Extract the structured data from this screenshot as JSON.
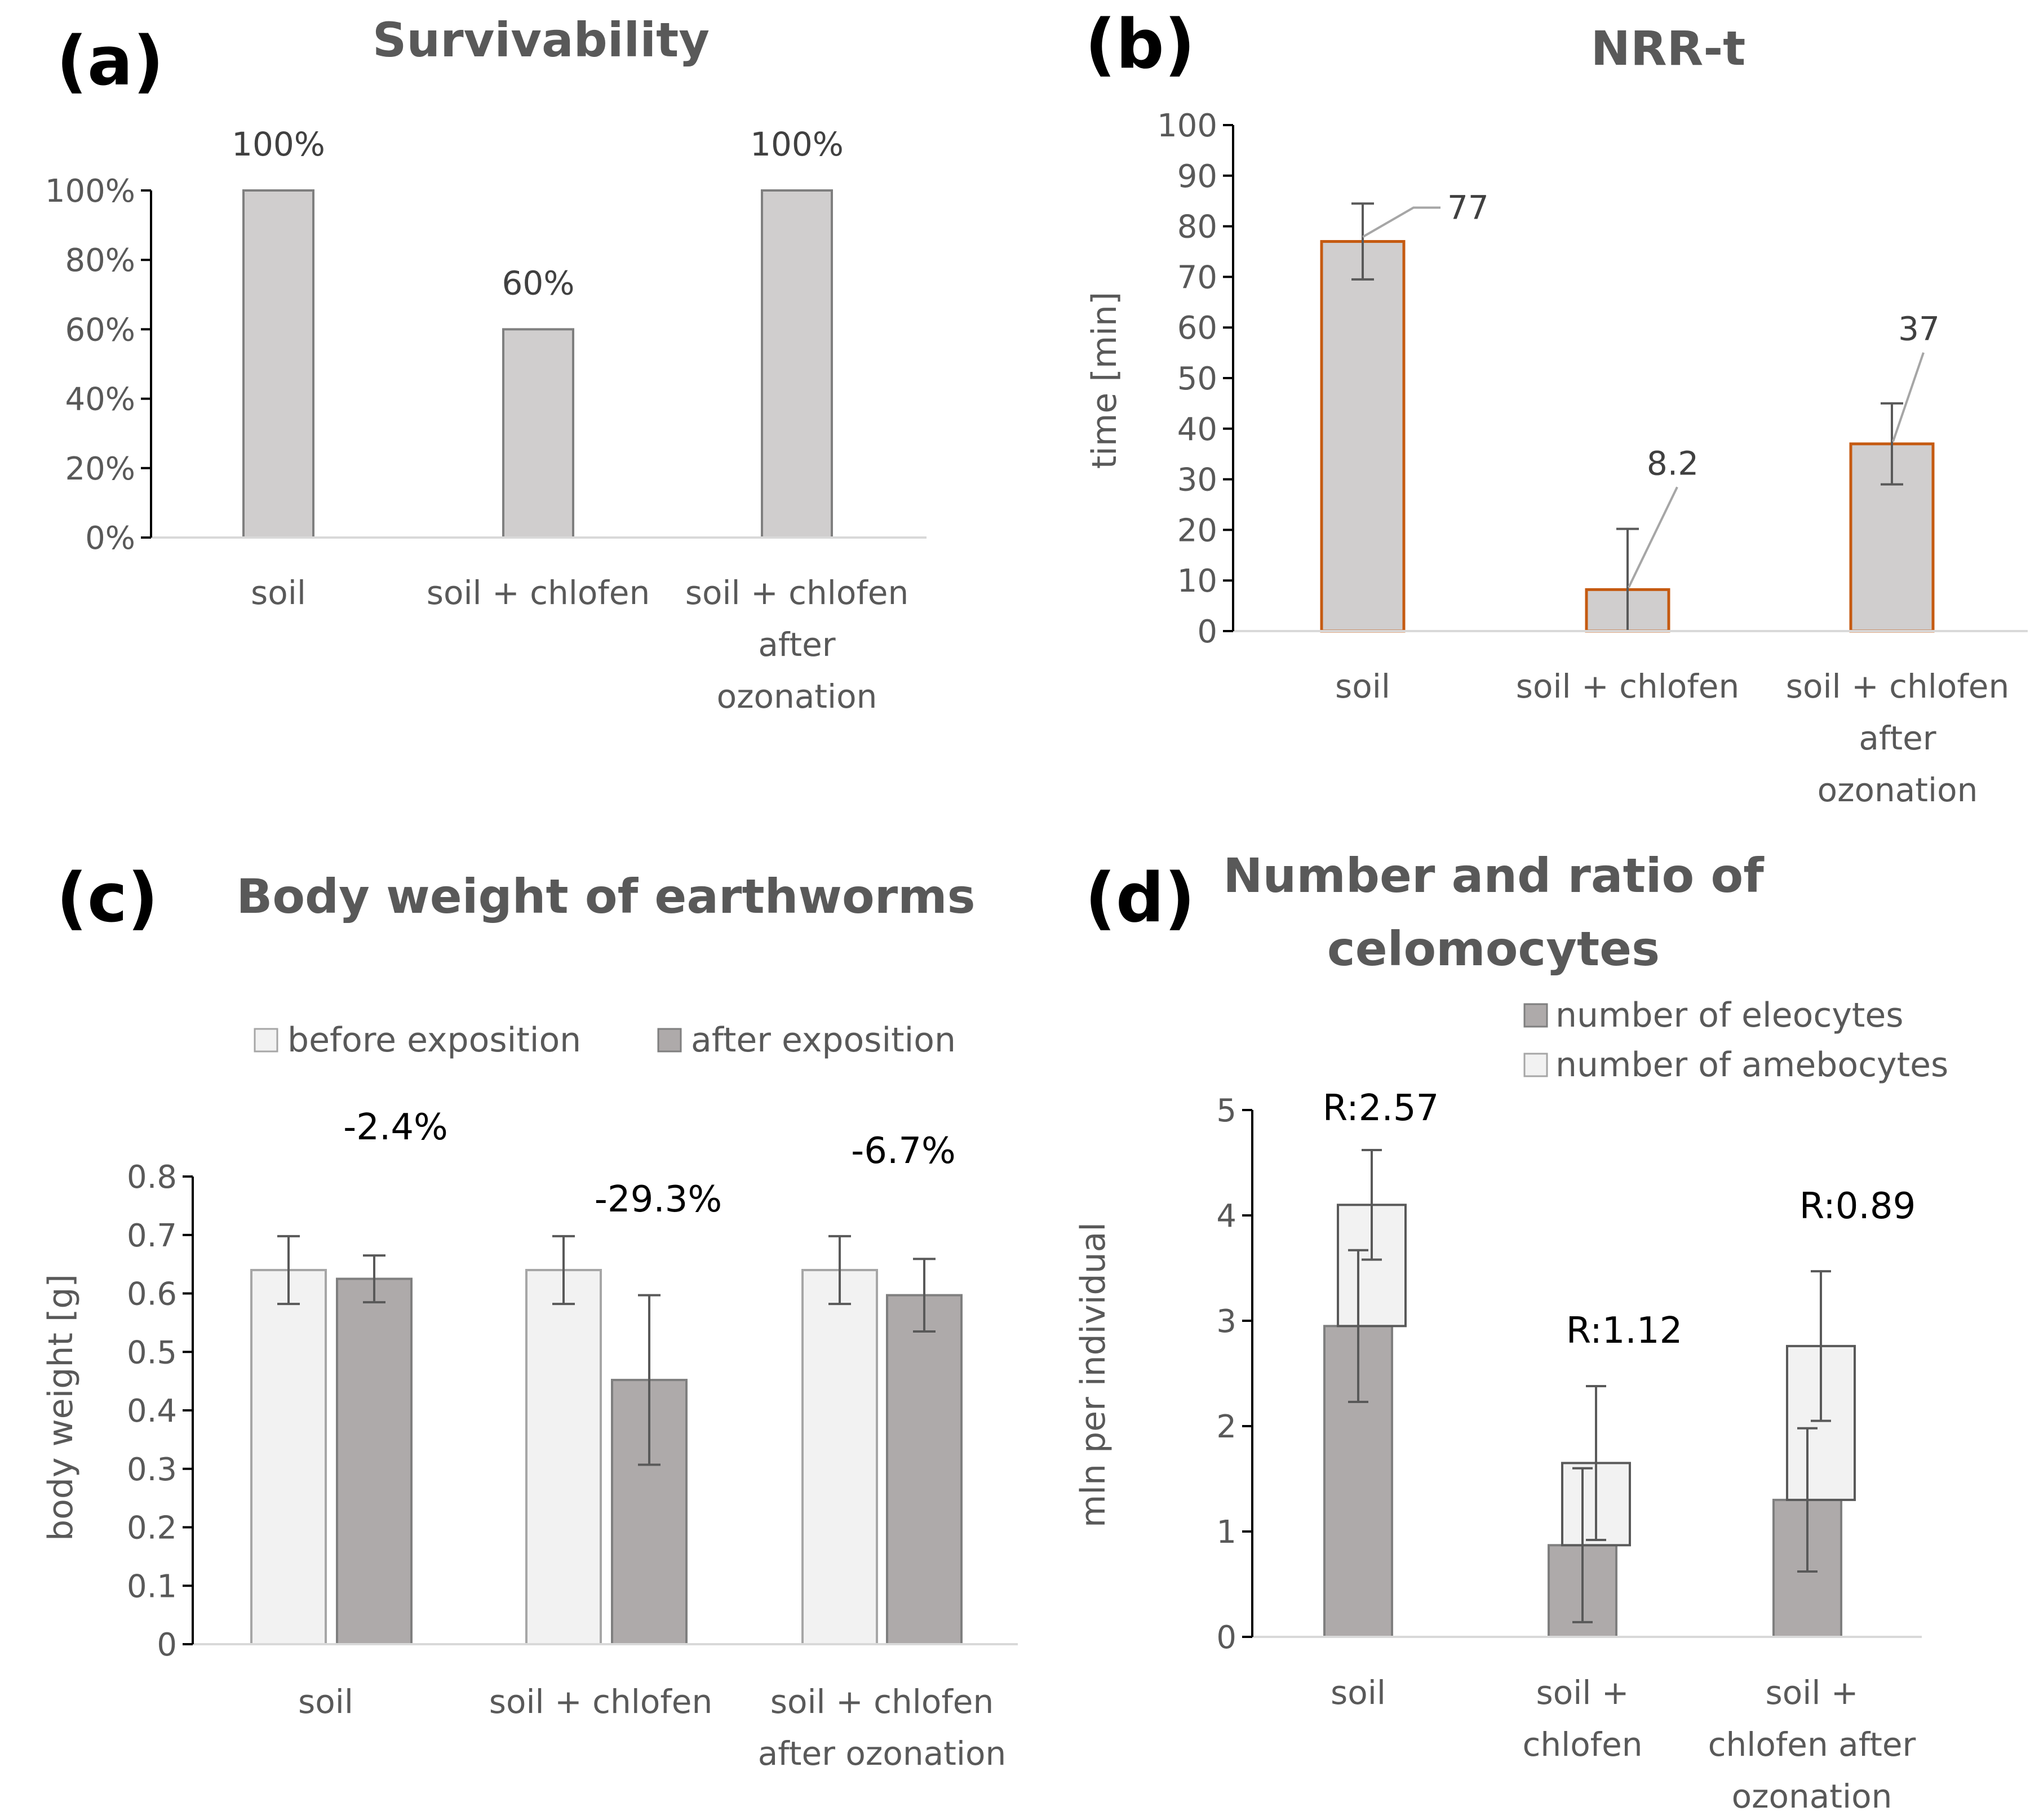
{
  "chart_data": [
    {
      "id": "a",
      "panel_label": "(a)",
      "type": "bar",
      "title": "Survivability",
      "categories": [
        [
          "soil"
        ],
        [
          "soil + chlofen"
        ],
        [
          "soil + chlofen",
          "after",
          "ozonation"
        ]
      ],
      "values": [
        100,
        60,
        100
      ],
      "value_labels": [
        "100%",
        "60%",
        "100%"
      ],
      "ylim": [
        0,
        100
      ],
      "yticks": [
        "0%",
        "20%",
        "40%",
        "60%",
        "80%",
        "100%"
      ],
      "xlabel": "",
      "ylabel": "",
      "bar_color": "#d0cece",
      "bar_edge": "#7f7f7f"
    },
    {
      "id": "b",
      "panel_label": "(b)",
      "type": "bar",
      "title": "NRR-t",
      "categories": [
        [
          "soil"
        ],
        [
          "soil + chlofen"
        ],
        [
          "soil + chlofen",
          "after",
          "ozonation"
        ]
      ],
      "values": [
        77,
        8.2,
        37
      ],
      "errors": [
        7.5,
        12,
        8
      ],
      "value_labels": [
        "77",
        "8.2",
        "37"
      ],
      "ylim": [
        0,
        100
      ],
      "yticks": [
        "0",
        "10",
        "20",
        "30",
        "40",
        "50",
        "60",
        "70",
        "80",
        "90",
        "100"
      ],
      "xlabel": "",
      "ylabel": "time  [min]",
      "bar_color": "#d0cece",
      "bar_edge": "#c55a11"
    },
    {
      "id": "c",
      "panel_label": "(c)",
      "type": "bar",
      "title": "Body weight of earthworms",
      "categories": [
        [
          "soil"
        ],
        [
          "soil + chlofen"
        ],
        [
          "soil + chlofen",
          "after ozonation"
        ]
      ],
      "series": [
        {
          "name": "before exposition",
          "values": [
            0.64,
            0.64,
            0.64
          ],
          "errors": [
            0.058,
            0.058,
            0.058
          ],
          "color": "#f2f2f2"
        },
        {
          "name": "after exposition",
          "values": [
            0.625,
            0.452,
            0.597
          ],
          "errors": [
            0.04,
            0.145,
            0.062
          ],
          "color": "#aeaaaa"
        }
      ],
      "annotations": [
        "-2.4%",
        "-29.3%",
        "-6.7%"
      ],
      "ylim": [
        0,
        0.8
      ],
      "yticks": [
        "0",
        "0.1",
        "0.2",
        "0.3",
        "0.4",
        "0.5",
        "0.6",
        "0.7",
        "0.8"
      ],
      "xlabel": "",
      "ylabel": "body weight  [g]"
    },
    {
      "id": "d",
      "panel_label": "(d)",
      "type": "stacked bar",
      "title": [
        "Number and ratio of",
        "celomocytes"
      ],
      "categories": [
        [
          "soil"
        ],
        [
          "soil +",
          "chlofen"
        ],
        [
          "soil +",
          "chlofen after",
          "ozonation"
        ]
      ],
      "series": [
        {
          "name": "number of eleocytes",
          "values": [
            2.95,
            0.87,
            1.3
          ],
          "errors": [
            0.72,
            0.73,
            0.68
          ],
          "color": "#aeaaaa"
        },
        {
          "name": "number of amebocytes",
          "values": [
            1.15,
            0.78,
            1.46
          ],
          "errors": [
            0.52,
            0.73,
            0.71
          ],
          "color": "#f2f2f2"
        }
      ],
      "annotations": [
        "R:2.57",
        "R:1.12",
        "R:0.89"
      ],
      "ylim": [
        0,
        5
      ],
      "yticks": [
        "0",
        "1",
        "2",
        "3",
        "4",
        "5"
      ],
      "xlabel": "",
      "ylabel": "mln per individual"
    }
  ]
}
